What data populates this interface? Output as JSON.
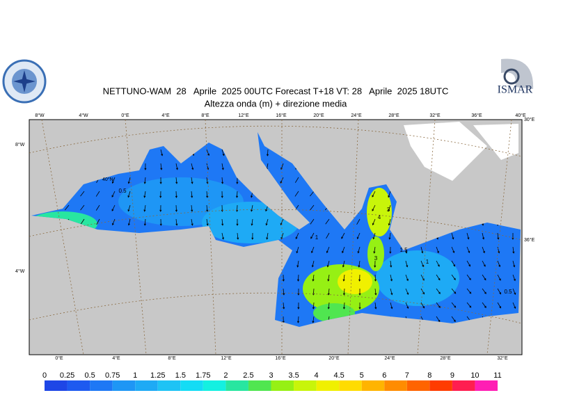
{
  "header": {
    "title": "NETTUNO-WAM  28   Aprile  2025 00UTC Forecast T+18 VT: 28   Aprile  2025 18UTC",
    "subtitle": "Altezza onda (m) + direzione media",
    "logo_text": "ISMAR"
  },
  "map": {
    "top_labels": [
      "8°W",
      "4°W",
      "0°E",
      "4°E",
      "8°E",
      "12°E",
      "16°E",
      "20°E",
      "24°E",
      "28°E",
      "32°E",
      "36°E",
      "40°E"
    ],
    "bottom_labels": [
      "0°E",
      "4°E",
      "8°E",
      "12°E",
      "16°E",
      "20°E",
      "24°E",
      "28°E",
      "32°E"
    ],
    "left_labels": [
      "8°W",
      "4°W"
    ],
    "right_labels": [
      "30°E",
      "36°E"
    ],
    "lat_label": "40°N",
    "contour_labels": [
      "0.5",
      "1",
      "3",
      "4",
      "3",
      "1.5",
      "1",
      "0.5"
    ]
  },
  "legend": {
    "labels": [
      "0",
      "0.25",
      "0.5",
      "0.75",
      "1",
      "1.25",
      "1.5",
      "1.75",
      "2",
      "2.5",
      "3",
      "3.5",
      "4",
      "4.5",
      "5",
      "6",
      "7",
      "8",
      "9",
      "10",
      "11"
    ],
    "colors": [
      "#1e46e6",
      "#1e5af0",
      "#1e78f5",
      "#1e96f5",
      "#1eaaf5",
      "#1ec3f5",
      "#14dcf5",
      "#14f0e1",
      "#28e6a0",
      "#50e650",
      "#96f014",
      "#c8f50a",
      "#f0f000",
      "#ffdc00",
      "#ffb400",
      "#ff8c00",
      "#ff6400",
      "#ff3c00",
      "#ff1e50",
      "#ff1eb4"
    ]
  }
}
